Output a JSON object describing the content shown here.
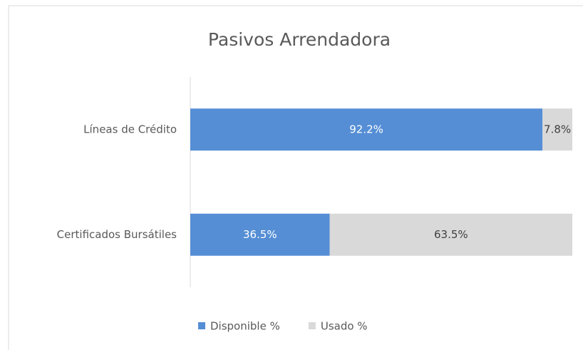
{
  "chart_data": {
    "type": "stacked_bar_horizontal",
    "title": "Pasivos Arrendadora",
    "categories": [
      "Líneas de Crédito",
      "Certificados Bursátiles"
    ],
    "series": [
      {
        "name": "Disponible %",
        "color": "#558ed5",
        "values": [
          92.2,
          36.5
        ],
        "value_labels": [
          "92.2%",
          "36.5%"
        ]
      },
      {
        "name": "Usado %",
        "color": "#d9d9d9",
        "values": [
          7.8,
          63.5
        ],
        "value_labels": [
          "7.8%",
          "63.5%"
        ]
      }
    ],
    "xlim": [
      0,
      100
    ],
    "legend": "bottom"
  }
}
